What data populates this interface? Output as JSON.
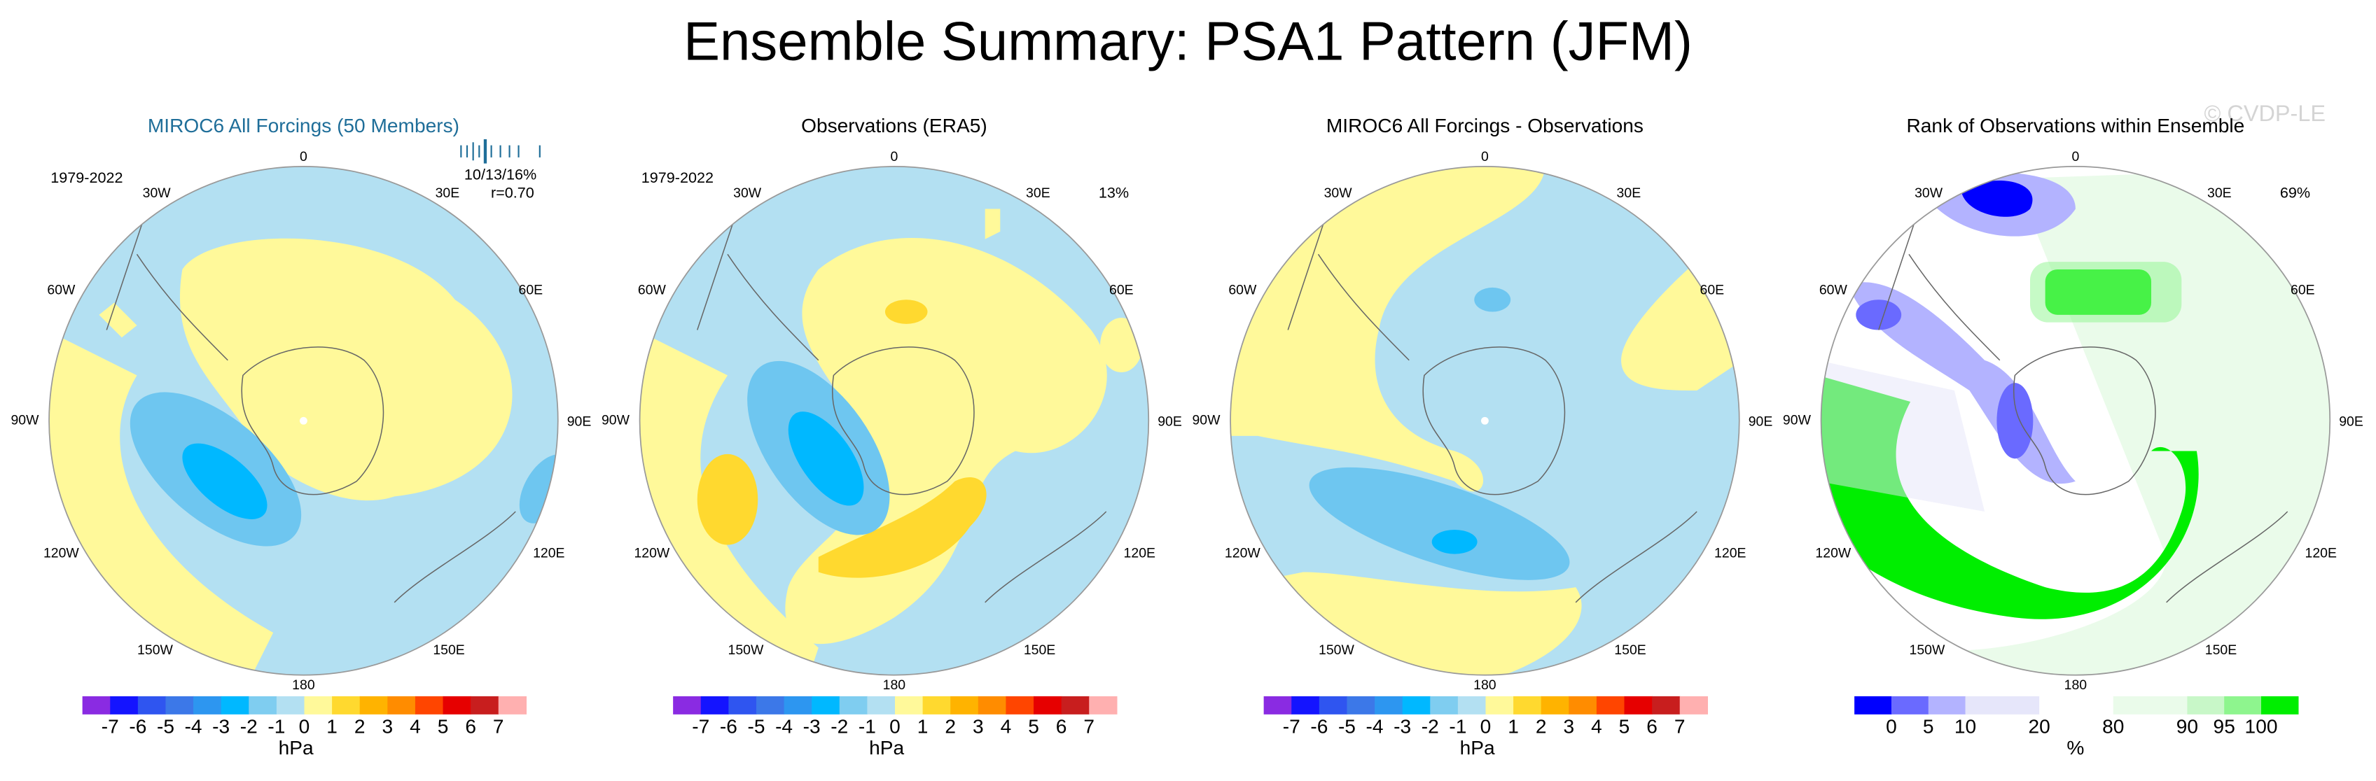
{
  "title": "Ensemble Summary: PSA1 Pattern (JFM)",
  "watermark": "© CVDP-LE",
  "lon_labels": [
    "0",
    "30E",
    "60E",
    "90E",
    "120E",
    "150E",
    "180",
    "150W",
    "120W",
    "90W",
    "60W",
    "30W"
  ],
  "panels": [
    {
      "title": "MIROC6 All Forcings (50 Members)",
      "period": "1979-2022",
      "stats": [
        "10/13/16%",
        "r=0.70"
      ],
      "colorbar": {
        "colors": [
          "#8a2be2",
          "#1414ff",
          "#2f55f0",
          "#3c78e8",
          "#2d96f0",
          "#00b8ff",
          "#7fcdf0",
          "#b3e0f2",
          "#fff99a",
          "#ffd92f",
          "#ffb300",
          "#ff8c00",
          "#ff4500",
          "#e60000",
          "#c81e1e",
          "#ffb0b0"
        ],
        "ticks": [
          -7,
          -6,
          -5,
          -4,
          -3,
          -2,
          -1,
          0,
          1,
          2,
          3,
          4,
          5,
          6,
          7
        ],
        "unit": "hPa"
      }
    },
    {
      "title": "Observations (ERA5)",
      "period": "1979-2022",
      "stats": [
        "13%"
      ],
      "colorbar": {
        "colors": [
          "#8a2be2",
          "#1414ff",
          "#2f55f0",
          "#3c78e8",
          "#2d96f0",
          "#00b8ff",
          "#7fcdf0",
          "#b3e0f2",
          "#fff99a",
          "#ffd92f",
          "#ffb300",
          "#ff8c00",
          "#ff4500",
          "#e60000",
          "#c81e1e",
          "#ffb0b0"
        ],
        "ticks": [
          -7,
          -6,
          -5,
          -4,
          -3,
          -2,
          -1,
          0,
          1,
          2,
          3,
          4,
          5,
          6,
          7
        ],
        "unit": "hPa"
      }
    },
    {
      "title": "MIROC6 All Forcings - Observations",
      "colorbar": {
        "colors": [
          "#8a2be2",
          "#1414ff",
          "#2f55f0",
          "#3c78e8",
          "#2d96f0",
          "#00b8ff",
          "#7fcdf0",
          "#b3e0f2",
          "#fff99a",
          "#ffd92f",
          "#ffb300",
          "#ff8c00",
          "#ff4500",
          "#e60000",
          "#c81e1e",
          "#ffb0b0"
        ],
        "ticks": [
          -7,
          -6,
          -5,
          -4,
          -3,
          -2,
          -1,
          0,
          1,
          2,
          3,
          4,
          5,
          6,
          7
        ],
        "unit": "hPa"
      }
    },
    {
      "title": "Rank of Observations within Ensemble",
      "stats": [
        "69%"
      ],
      "colorbar": {
        "colors": [
          "#0000ff",
          "#6a6aff",
          "#b3b3ff",
          "#e6e6fa",
          "#ffffff",
          "#eafbea",
          "#c8f7c8",
          "#8ef58e",
          "#00ee00"
        ],
        "ticks": [
          0,
          5,
          10,
          20,
          80,
          90,
          95,
          100
        ],
        "unit": "%"
      }
    }
  ]
}
